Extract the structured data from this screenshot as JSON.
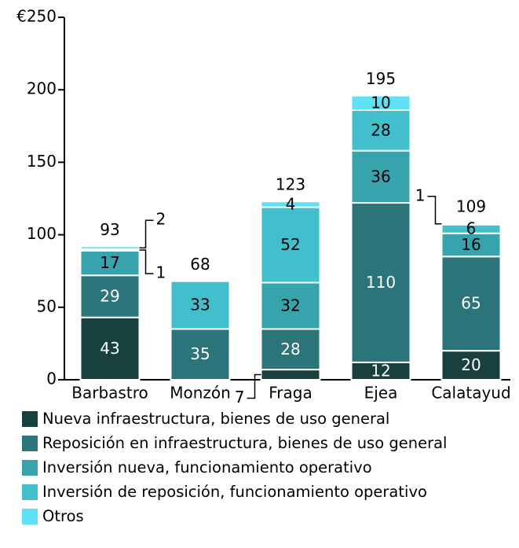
{
  "chart_data": {
    "type": "stacked_bar",
    "categories": [
      "Barbastro",
      "Monzón",
      "Fraga",
      "Ejea",
      "Calatayud"
    ],
    "series": [
      {
        "name": "Nueva infraestructura, bienes de uso general",
        "color": "#17403f",
        "values": [
          43,
          null,
          7,
          12,
          20
        ]
      },
      {
        "name": "Reposición en infraestructura, bienes de uso general",
        "color": "#2b7479",
        "values": [
          29,
          35,
          28,
          110,
          65
        ]
      },
      {
        "name": "Inversión nueva, funcionamiento operativo",
        "color": "#36a3ad",
        "values": [
          17,
          null,
          32,
          36,
          16
        ]
      },
      {
        "name": "Inversión de reposición, funcionamiento operativo",
        "color": "#41bfcc",
        "values": [
          1,
          33,
          52,
          28,
          6
        ]
      },
      {
        "name": "Otros",
        "color": "#5ee1f5",
        "values": [
          2,
          null,
          4,
          10,
          1
        ]
      }
    ],
    "totals": [
      93,
      68,
      123,
      195,
      109
    ],
    "ylim": [
      0,
      250
    ],
    "yticks": [
      0,
      50,
      100,
      150,
      200,
      {
        "value": 250,
        "label": "€250"
      }
    ],
    "grid": false
  }
}
